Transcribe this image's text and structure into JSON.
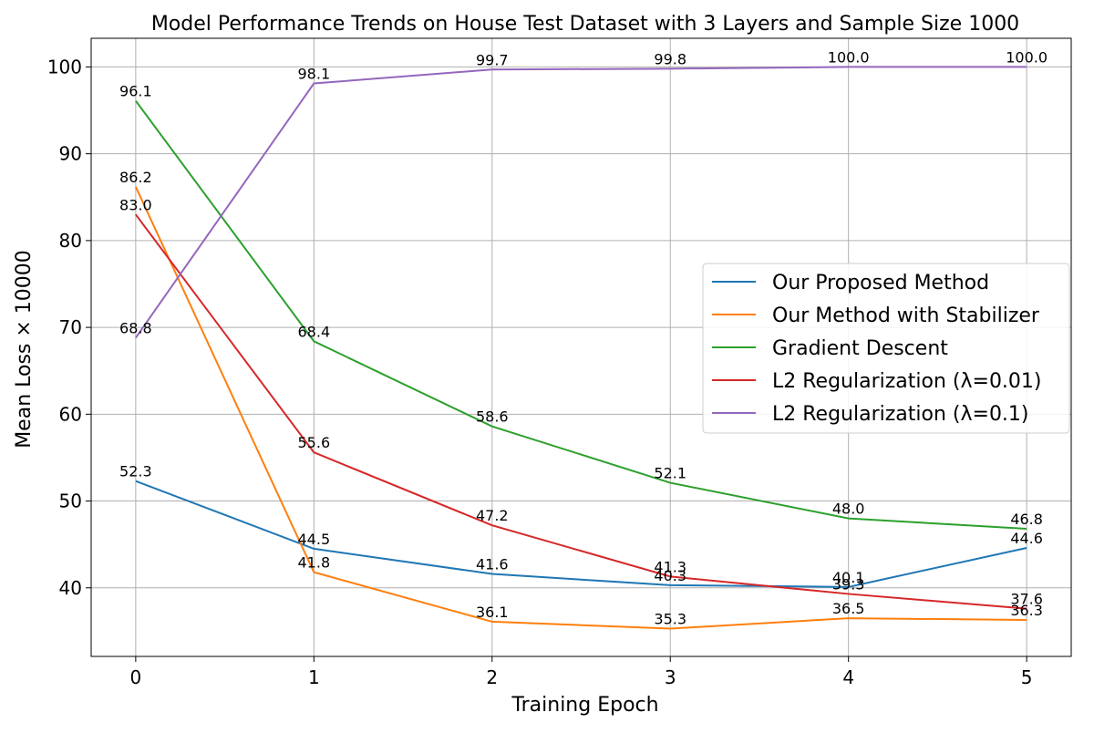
{
  "chart_data": {
    "type": "line",
    "title": "Model Performance Trends on House Test Dataset with 3 Layers and Sample Size 1000",
    "xlabel": "Training Epoch",
    "ylabel": "Mean Loss × 10000",
    "x": [
      0,
      1,
      2,
      3,
      4,
      5
    ],
    "xticks": [
      "0",
      "1",
      "2",
      "3",
      "4",
      "5"
    ],
    "yticks": [
      "40",
      "50",
      "60",
      "70",
      "80",
      "90",
      "100"
    ],
    "xlim": [
      -0.25,
      5.25
    ],
    "ylim": [
      32.1,
      103.3
    ],
    "grid": true,
    "legend_position": "center-right",
    "series": [
      {
        "name": "Our Proposed Method",
        "color": "#1f77b4",
        "values": [
          52.3,
          44.5,
          41.6,
          40.3,
          40.1,
          44.6
        ],
        "labels": [
          "52.3",
          "44.5",
          "41.6",
          "40.3",
          "40.1",
          "44.6"
        ]
      },
      {
        "name": "Our Method with Stabilizer",
        "color": "#ff7f0e",
        "values": [
          86.2,
          41.8,
          36.1,
          35.3,
          36.5,
          36.3
        ],
        "labels": [
          "86.2",
          "41.8",
          "36.1",
          "35.3",
          "36.5",
          "36.3"
        ]
      },
      {
        "name": "Gradient Descent",
        "color": "#2ca02c",
        "values": [
          96.1,
          68.4,
          58.6,
          52.1,
          48.0,
          46.8
        ],
        "labels": [
          "96.1",
          "68.4",
          "58.6",
          "52.1",
          "48.0",
          "46.8"
        ]
      },
      {
        "name": "L2 Regularization (λ=0.01)",
        "color": "#d62728",
        "values": [
          83.0,
          55.6,
          47.2,
          41.3,
          39.3,
          37.6
        ],
        "labels": [
          "83.0",
          "55.6",
          "47.2",
          "41.3",
          "39.3",
          "37.6"
        ]
      },
      {
        "name": "L2 Regularization (λ=0.1)",
        "color": "#9467bd",
        "values": [
          68.8,
          98.1,
          99.7,
          99.8,
          100.0,
          100.0
        ],
        "labels": [
          "68.8",
          "98.1",
          "99.7",
          "99.8",
          "100.0",
          "100.0"
        ]
      }
    ]
  }
}
